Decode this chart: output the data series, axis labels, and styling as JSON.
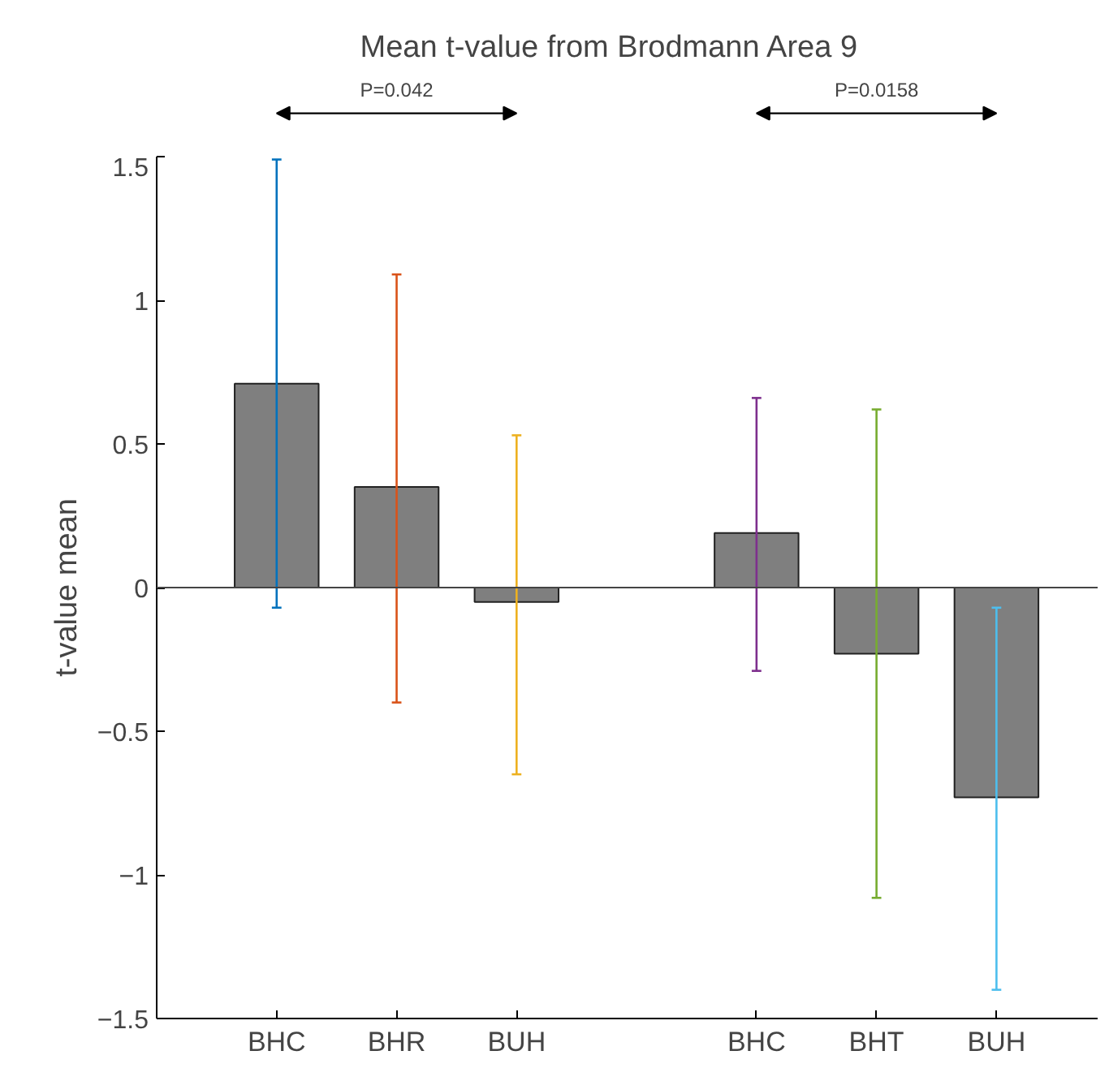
{
  "chart_data": {
    "type": "bar",
    "title": "Mean t-value from Brodmann Area 9",
    "ylabel": "t-value mean",
    "categories": [
      "BHC",
      "BHR",
      "BUH",
      null,
      "BHC",
      "BHT",
      "BUH"
    ],
    "values": [
      0.71,
      0.35,
      -0.05,
      null,
      0.19,
      -0.23,
      -0.73
    ],
    "color": "#7f7f7f",
    "errors": [
      [
        -0.07,
        1.49
      ],
      [
        -0.4,
        1.09
      ],
      [
        -0.65,
        0.53
      ],
      null,
      [
        -0.29,
        0.66
      ],
      [
        -1.08,
        0.62
      ],
      [
        -1.4,
        -0.07
      ]
    ],
    "annotations": [
      "P=0.042",
      "P=0.0158"
    ],
    "ref_lines": [
      {
        "axis": "y",
        "value": 0
      }
    ],
    "ylim": [
      -1.5,
      1.5
    ],
    "yticks": [
      -1.5,
      -1,
      -0.5,
      0,
      0.5,
      1,
      1.5
    ],
    "grid": false
  }
}
